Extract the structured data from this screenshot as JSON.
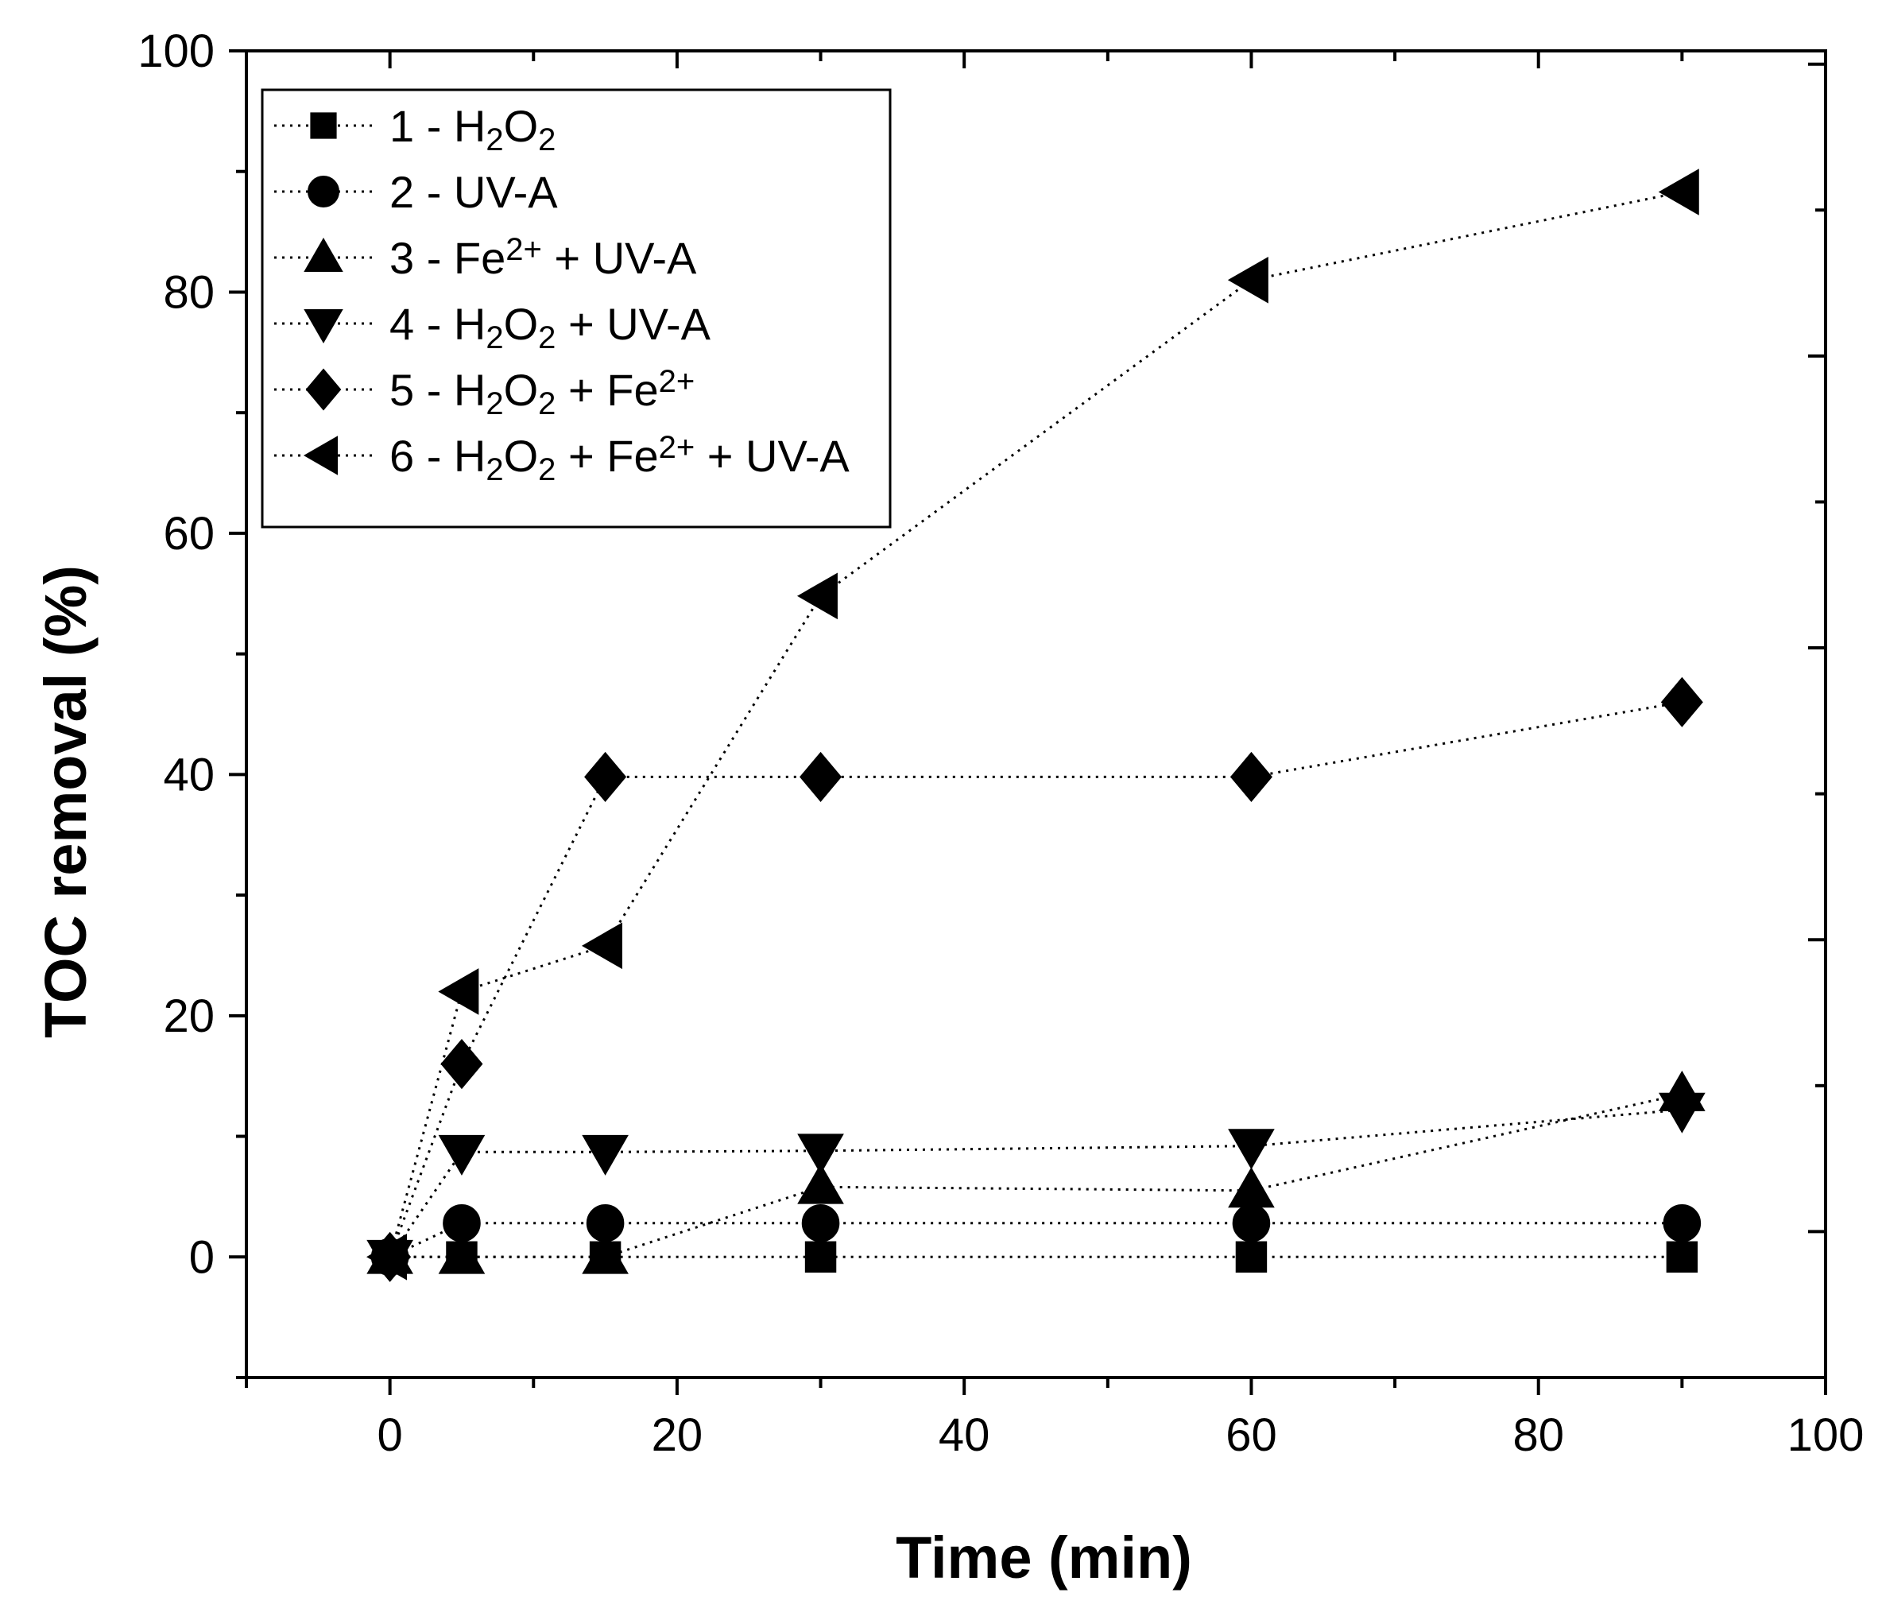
{
  "chart_data": {
    "type": "scatter",
    "title": "",
    "xlabel": "Time (min)",
    "ylabel": "TOC removal (%)",
    "xlim": [
      -10,
      100
    ],
    "ylim": [
      -10,
      100
    ],
    "x_ticks": [
      0,
      20,
      40,
      60,
      80,
      100
    ],
    "y_ticks": [
      0,
      20,
      40,
      60,
      80,
      100
    ],
    "grid": false,
    "legend_position": "top-left",
    "series": [
      {
        "name": "1 - H2O2",
        "label_parts": [
          [
            "1 - H",
            "n"
          ],
          [
            "2",
            "sub"
          ],
          [
            "O",
            "n"
          ],
          [
            "2",
            "sub"
          ]
        ],
        "marker": "square",
        "x": [
          0,
          5,
          15,
          30,
          60,
          90
        ],
        "y": [
          0,
          0,
          0,
          0,
          0,
          0
        ]
      },
      {
        "name": "2 - UV-A",
        "label_parts": [
          [
            "2 - UV-A",
            "n"
          ]
        ],
        "marker": "circle",
        "x": [
          0,
          5,
          15,
          30,
          60,
          90
        ],
        "y": [
          0,
          2.8,
          2.8,
          2.8,
          2.8,
          2.8
        ]
      },
      {
        "name": "3 - Fe2+ + UV-A",
        "label_parts": [
          [
            "3 - Fe",
            "n"
          ],
          [
            "2+",
            "sup"
          ],
          [
            " + UV-A",
            "n"
          ]
        ],
        "marker": "triangle-up",
        "x": [
          0,
          5,
          15,
          30,
          60,
          90
        ],
        "y": [
          0,
          0,
          0,
          5.8,
          5.5,
          13.5
        ]
      },
      {
        "name": "4 - H2O2 + UV-A",
        "label_parts": [
          [
            "4 - H",
            "n"
          ],
          [
            "2",
            "sub"
          ],
          [
            "O",
            "n"
          ],
          [
            "2",
            "sub"
          ],
          [
            " + UV-A",
            "n"
          ]
        ],
        "marker": "triangle-down",
        "x": [
          0,
          5,
          15,
          30,
          60,
          90
        ],
        "y": [
          0,
          8.7,
          8.7,
          8.8,
          9.2,
          12.2
        ]
      },
      {
        "name": "5 - H2O2 + Fe2+",
        "label_parts": [
          [
            "5 - H",
            "n"
          ],
          [
            "2",
            "sub"
          ],
          [
            "O",
            "n"
          ],
          [
            "2",
            "sub"
          ],
          [
            " + Fe",
            "n"
          ],
          [
            "2+",
            "sup"
          ]
        ],
        "marker": "diamond",
        "x": [
          0,
          5,
          15,
          30,
          60,
          90
        ],
        "y": [
          0,
          16,
          39.8,
          39.8,
          39.8,
          46
        ]
      },
      {
        "name": "6 - H2O2 + Fe2+ + UV-A",
        "label_parts": [
          [
            "6 - H",
            "n"
          ],
          [
            "2",
            "sub"
          ],
          [
            "O",
            "n"
          ],
          [
            "2",
            "sub"
          ],
          [
            " + Fe",
            "n"
          ],
          [
            "2+",
            "sup"
          ],
          [
            " + UV-A",
            "n"
          ]
        ],
        "marker": "triangle-left",
        "x": [
          0,
          5,
          15,
          30,
          60,
          90
        ],
        "y": [
          0,
          22,
          25.8,
          54.8,
          81,
          88.3
        ]
      }
    ]
  }
}
